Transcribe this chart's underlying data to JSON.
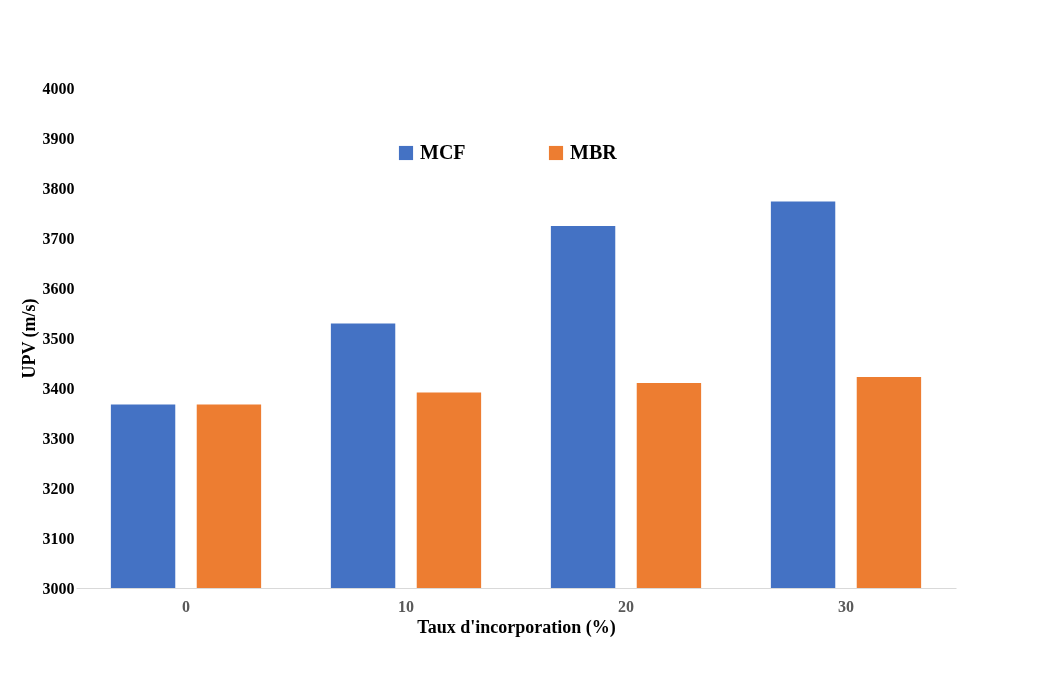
{
  "chart_data": {
    "type": "bar",
    "xlabel": "Taux d'incorporation (%)",
    "ylabel": "UPV (m/s)",
    "categories": [
      "0",
      "10",
      "20",
      "30"
    ],
    "series": [
      {
        "name": "MCF",
        "color": "#4472c4",
        "values": [
          3367,
          3529,
          3724,
          3773
        ]
      },
      {
        "name": "MBR",
        "color": "#ed7d31",
        "values": [
          3367,
          3391,
          3410,
          3422
        ]
      }
    ],
    "ylim": [
      3000,
      4000
    ],
    "yticks": [
      3000,
      3100,
      3200,
      3300,
      3400,
      3500,
      3600,
      3700,
      3800,
      3900,
      4000
    ],
    "grid": false,
    "legend": "top"
  }
}
